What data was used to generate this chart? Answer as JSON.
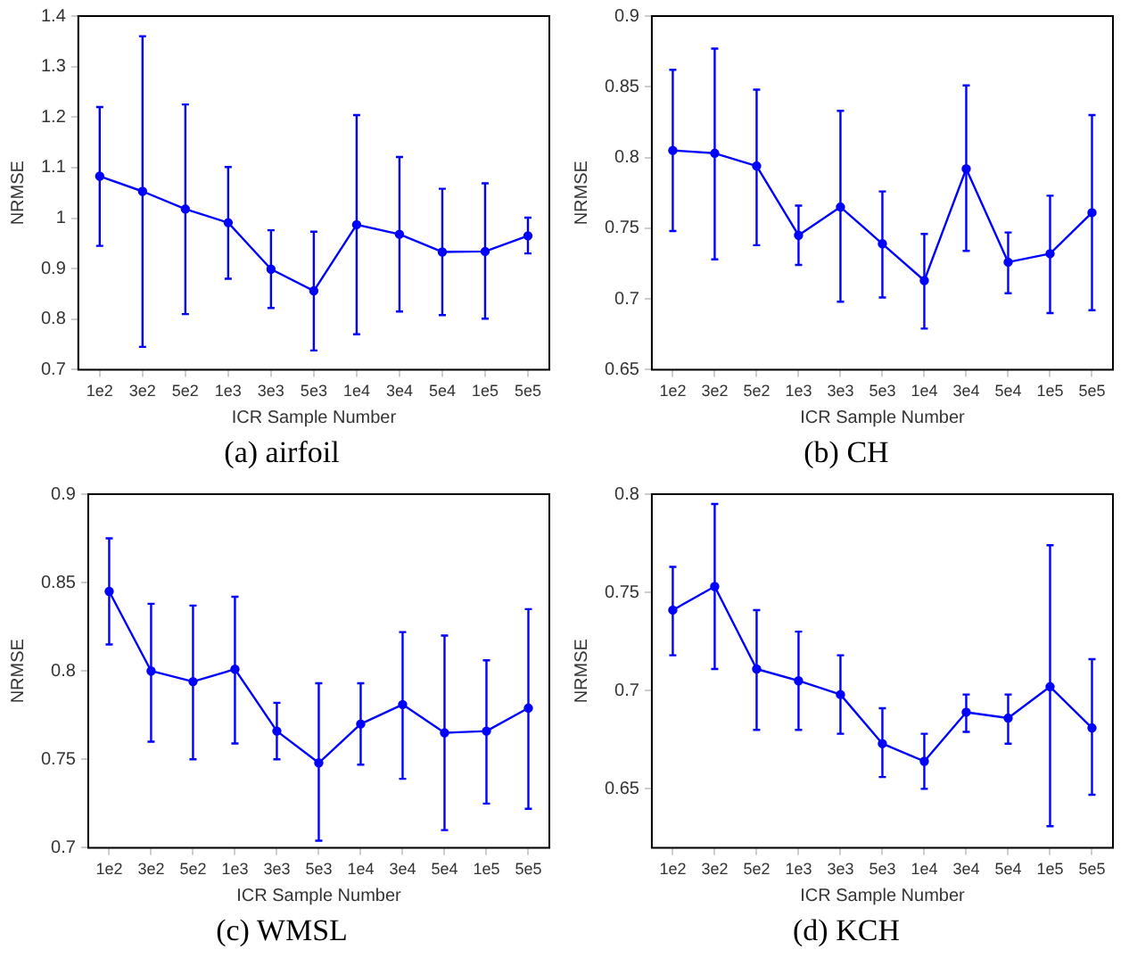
{
  "chart_data": [
    {
      "type": "line",
      "xlabel": "ICR Sample Number",
      "ylabel": "NRMSE",
      "annotations": [
        "(a) airfoil"
      ],
      "marker": "circle",
      "categories": [
        "1e2",
        "3e2",
        "5e2",
        "1e3",
        "3e3",
        "5e3",
        "1e4",
        "3e4",
        "5e4",
        "1e5",
        "5e5"
      ],
      "ylim": [
        0.7,
        1.4
      ],
      "yticks": [
        0.7,
        0.8,
        0.9,
        1,
        1.1,
        1.2,
        1.3,
        1.4
      ],
      "series": [
        {
          "color": "#0000ff",
          "values": [
            1.083,
            1.053,
            1.018,
            0.991,
            0.899,
            0.856,
            0.987,
            0.968,
            0.933,
            0.934,
            0.965
          ],
          "errors": [
            [
              0.945,
              1.22
            ],
            [
              0.745,
              1.36
            ],
            [
              0.81,
              1.225
            ],
            [
              0.88,
              1.101
            ],
            [
              0.822,
              0.976
            ],
            [
              0.738,
              0.973
            ],
            [
              0.77,
              1.204
            ],
            [
              0.815,
              1.121
            ],
            [
              0.808,
              1.058
            ],
            [
              0.801,
              1.069
            ],
            [
              0.93,
              1.001
            ]
          ]
        }
      ]
    },
    {
      "type": "line",
      "xlabel": "ICR Sample Number",
      "ylabel": "NRMSE",
      "annotations": [
        "(b) CH"
      ],
      "marker": "circle",
      "categories": [
        "1e2",
        "3e2",
        "5e2",
        "1e3",
        "3e3",
        "5e3",
        "1e4",
        "3e4",
        "5e4",
        "1e5",
        "5e5"
      ],
      "ylim": [
        0.65,
        0.9
      ],
      "yticks": [
        0.65,
        0.7,
        0.75,
        0.8,
        0.85,
        0.9
      ],
      "series": [
        {
          "color": "#0000ff",
          "values": [
            0.805,
            0.803,
            0.794,
            0.745,
            0.765,
            0.739,
            0.713,
            0.792,
            0.726,
            0.732,
            0.761
          ],
          "errors": [
            [
              0.748,
              0.862
            ],
            [
              0.728,
              0.877
            ],
            [
              0.738,
              0.848
            ],
            [
              0.724,
              0.766
            ],
            [
              0.698,
              0.833
            ],
            [
              0.701,
              0.776
            ],
            [
              0.679,
              0.746
            ],
            [
              0.734,
              0.851
            ],
            [
              0.704,
              0.747
            ],
            [
              0.69,
              0.773
            ],
            [
              0.692,
              0.83
            ]
          ]
        }
      ]
    },
    {
      "type": "line",
      "xlabel": "ICR Sample Number",
      "ylabel": "NRMSE",
      "annotations": [
        "(c) WMSL"
      ],
      "marker": "circle",
      "categories": [
        "1e2",
        "3e2",
        "5e2",
        "1e3",
        "3e3",
        "5e3",
        "1e4",
        "3e4",
        "5e4",
        "1e5",
        "5e5"
      ],
      "ylim": [
        0.7,
        0.9
      ],
      "yticks": [
        0.7,
        0.75,
        0.8,
        0.85,
        0.9
      ],
      "series": [
        {
          "color": "#0000ff",
          "values": [
            0.845,
            0.8,
            0.794,
            0.801,
            0.766,
            0.748,
            0.77,
            0.781,
            0.765,
            0.766,
            0.779
          ],
          "errors": [
            [
              0.815,
              0.875
            ],
            [
              0.76,
              0.838
            ],
            [
              0.75,
              0.837
            ],
            [
              0.759,
              0.842
            ],
            [
              0.75,
              0.782
            ],
            [
              0.704,
              0.793
            ],
            [
              0.747,
              0.793
            ],
            [
              0.739,
              0.822
            ],
            [
              0.71,
              0.82
            ],
            [
              0.725,
              0.806
            ],
            [
              0.722,
              0.835
            ]
          ]
        }
      ]
    },
    {
      "type": "line",
      "xlabel": "ICR Sample Number",
      "ylabel": "NRMSE",
      "annotations": [
        "(d) KCH"
      ],
      "marker": "circle",
      "categories": [
        "1e2",
        "3e2",
        "5e2",
        "1e3",
        "3e3",
        "5e3",
        "1e4",
        "3e4",
        "5e4",
        "1e5",
        "5e5"
      ],
      "ylim": [
        0.62,
        0.8
      ],
      "yticks": [
        0.65,
        0.7,
        0.75,
        0.8
      ],
      "series": [
        {
          "color": "#0000ff",
          "values": [
            0.741,
            0.753,
            0.711,
            0.705,
            0.698,
            0.673,
            0.664,
            0.689,
            0.686,
            0.702,
            0.681
          ],
          "errors": [
            [
              0.718,
              0.763
            ],
            [
              0.711,
              0.795
            ],
            [
              0.68,
              0.741
            ],
            [
              0.68,
              0.73
            ],
            [
              0.678,
              0.718
            ],
            [
              0.656,
              0.691
            ],
            [
              0.65,
              0.678
            ],
            [
              0.679,
              0.698
            ],
            [
              0.673,
              0.698
            ],
            [
              0.631,
              0.774
            ],
            [
              0.647,
              0.716
            ]
          ]
        }
      ]
    }
  ]
}
